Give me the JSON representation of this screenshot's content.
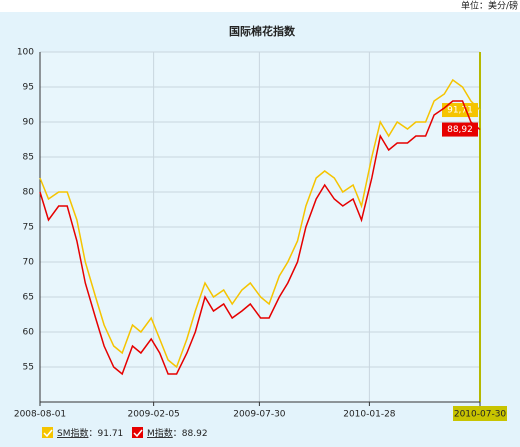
{
  "chart_data": {
    "type": "line",
    "title": "国际棉花指数",
    "unit": "单位：美分/磅",
    "x": [
      "2008-08-01",
      "2008-08-15",
      "2008-09-01",
      "2008-09-15",
      "2008-10-01",
      "2008-10-15",
      "2008-11-01",
      "2008-11-15",
      "2008-12-01",
      "2008-12-15",
      "2009-01-01",
      "2009-01-15",
      "2009-02-01",
      "2009-02-15",
      "2009-03-01",
      "2009-03-15",
      "2009-04-01",
      "2009-04-15",
      "2009-05-01",
      "2009-05-15",
      "2009-06-01",
      "2009-06-15",
      "2009-07-01",
      "2009-07-15",
      "2009-08-01",
      "2009-08-15",
      "2009-09-01",
      "2009-09-15",
      "2009-10-01",
      "2009-10-15",
      "2009-11-01",
      "2009-11-15",
      "2009-12-01",
      "2009-12-15",
      "2010-01-01",
      "2010-01-15",
      "2010-02-01",
      "2010-02-15",
      "2010-03-01",
      "2010-03-15",
      "2010-04-01",
      "2010-04-15",
      "2010-05-01",
      "2010-05-15",
      "2010-06-01",
      "2010-06-15",
      "2010-07-01",
      "2010-07-15",
      "2010-07-30"
    ],
    "series": [
      {
        "name": "SM指数",
        "color": "#f5c400",
        "values": [
          82,
          79,
          80,
          80,
          76,
          70,
          65,
          61,
          58,
          57,
          61,
          60,
          62,
          59,
          56,
          55,
          59,
          63,
          67,
          65,
          66,
          64,
          66,
          67,
          65,
          64,
          68,
          70,
          73,
          78,
          82,
          83,
          82,
          80,
          81,
          78,
          85,
          90,
          88,
          90,
          89,
          90,
          90,
          93,
          94,
          96,
          95,
          93,
          91.71
        ],
        "value_labels": [
          null,
          null,
          null,
          null,
          null,
          null,
          null,
          null,
          null,
          null,
          null,
          null,
          null,
          null,
          null,
          null,
          null,
          null,
          null,
          null,
          null,
          null,
          null,
          null,
          null,
          null,
          null,
          null,
          null,
          null,
          null,
          null,
          null,
          null,
          null,
          null,
          null,
          null,
          null,
          null,
          null,
          null,
          null,
          null,
          null,
          null,
          null,
          null,
          "91,71"
        ]
      },
      {
        "name": "M指数",
        "color": "#e60000",
        "values": [
          80,
          76,
          78,
          78,
          73,
          67,
          62,
          58,
          55,
          54,
          58,
          57,
          59,
          57,
          54,
          54,
          57,
          60,
          65,
          63,
          64,
          62,
          63,
          64,
          62,
          62,
          65,
          67,
          70,
          75,
          79,
          81,
          79,
          78,
          79,
          76,
          82,
          88,
          86,
          87,
          87,
          88,
          88,
          91,
          92,
          93,
          93,
          90,
          88.92
        ],
        "value_labels": [
          null,
          null,
          null,
          null,
          null,
          null,
          null,
          null,
          null,
          null,
          null,
          null,
          null,
          null,
          null,
          null,
          null,
          null,
          null,
          null,
          null,
          null,
          null,
          null,
          null,
          null,
          null,
          null,
          null,
          null,
          null,
          null,
          null,
          null,
          null,
          null,
          null,
          null,
          null,
          null,
          null,
          null,
          null,
          null,
          null,
          null,
          null,
          null,
          "88,92"
        ]
      }
    ],
    "legend_separator": "：",
    "xlim": [
      "2008-08-01",
      "2010-07-30"
    ],
    "xticks": [
      "2008-08-01",
      "2009-02-05",
      "2009-07-30",
      "2010-01-28",
      "2010-07-30"
    ],
    "ylim": [
      50,
      100
    ],
    "yticks": [
      55,
      60,
      65,
      70,
      75,
      80,
      85,
      90,
      95,
      100
    ],
    "grid": true
  }
}
